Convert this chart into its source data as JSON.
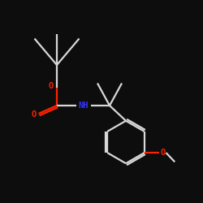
{
  "bg_color": "#0d0d0d",
  "bond_color": "#d8d8d8",
  "oxygen_color": "#ff2200",
  "nitrogen_color": "#3333ff",
  "bond_width": 1.6,
  "fig_size": [
    2.5,
    2.5
  ],
  "dpi": 100,
  "xlim": [
    0,
    10
  ],
  "ylim": [
    0,
    10
  ]
}
